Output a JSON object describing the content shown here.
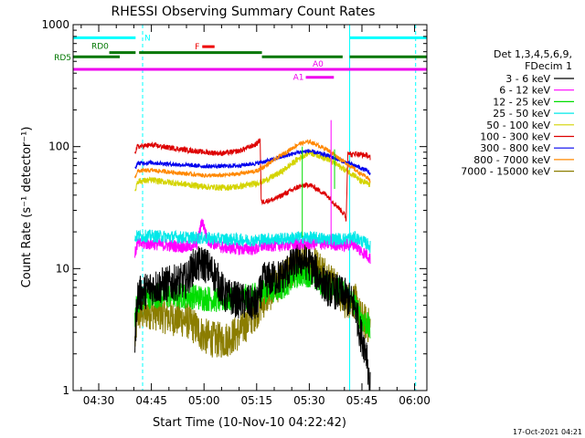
{
  "chart_data": {
    "type": "line",
    "title": "RHESSI Observing Summary Count Rates",
    "xlabel": "Start Time (10-Nov-10 04:22:42)",
    "ylabel": "Count Rate (s⁻¹ detector⁻¹)",
    "yscale": "log",
    "ylim": [
      1,
      1000
    ],
    "xlim_minutes": [
      22.7,
      123.5
    ],
    "x_ticks": [
      {
        "m": 30,
        "label": "04:30"
      },
      {
        "m": 45,
        "label": "04:45"
      },
      {
        "m": 60,
        "label": "05:00"
      },
      {
        "m": 75,
        "label": "05:15"
      },
      {
        "m": 90,
        "label": "05:30"
      },
      {
        "m": 105,
        "label": "05:45"
      },
      {
        "m": 120,
        "label": "06:00"
      }
    ],
    "y_ticks": [
      {
        "v": 1,
        "label": "1"
      },
      {
        "v": 10,
        "label": "10"
      },
      {
        "v": 100,
        "label": "100"
      },
      {
        "v": 1000,
        "label": "1000"
      }
    ],
    "legend": {
      "header": [
        "Det 1,3,4,5,6,9,",
        "FDecim 1"
      ],
      "entries": [
        {
          "label": "3 - 6 keV",
          "color": "#000000"
        },
        {
          "label": "6 - 12 keV",
          "color": "#ff00ff"
        },
        {
          "label": "12 - 25 keV",
          "color": "#00dd00"
        },
        {
          "label": "25 - 50 keV",
          "color": "#00e8e8"
        },
        {
          "label": "50 - 100 keV",
          "color": "#d4d400"
        },
        {
          "label": "100 - 300 keV",
          "color": "#dd0000"
        },
        {
          "label": "300 - 800 keV",
          "color": "#0000ee"
        },
        {
          "label": "800 - 7000 keV",
          "color": "#ff8800"
        },
        {
          "label": "7000 - 15000 keV",
          "color": "#8b7d00"
        }
      ]
    },
    "flag_bars": [
      {
        "label": "N",
        "color": "#00ffff",
        "segments": [
          [
            22.7,
            40.5
          ],
          [
            101.5,
            123.5
          ]
        ],
        "value": 780
      },
      {
        "label": "F",
        "color": "#ee0000",
        "segments": [
          [
            59.5,
            63
          ]
        ],
        "value": 660
      },
      {
        "label": "RD0",
        "color": "#007700",
        "segments": [
          [
            33,
            40.5
          ],
          [
            41.5,
            76.5
          ]
        ],
        "value": 590
      },
      {
        "label": "RD5",
        "color": "#007700",
        "segments": [
          [
            22.7,
            36
          ],
          [
            76.5,
            99.5
          ],
          [
            101.5,
            123.5
          ]
        ],
        "value": 545
      },
      {
        "label": "A0",
        "color": "#ee00ee",
        "segments": [
          [
            22.7,
            123.5
          ]
        ],
        "value": 430
      },
      {
        "label": "A1",
        "color": "#ee00ee",
        "segments": [
          [
            89,
            97
          ]
        ],
        "value": 370
      }
    ],
    "vertical_markers": [
      {
        "m": 42.5,
        "style": "dashed",
        "color": "#00ffff"
      },
      {
        "m": 101.5,
        "style": "solid",
        "color": "#00ffff"
      },
      {
        "m": 120.3,
        "style": "dashed",
        "color": "#00ffff"
      }
    ],
    "series": [
      {
        "name": "3 - 6 keV",
        "color": "#000000",
        "x": [
          40.3,
          41,
          45,
          55,
          57,
          60,
          63,
          66,
          70,
          75,
          77,
          82,
          87,
          90,
          95,
          100,
          103,
          104.5,
          106.5,
          107,
          107.4
        ],
        "y": [
          2.5,
          6,
          7,
          8,
          10.5,
          11,
          9,
          6,
          5.5,
          5,
          8,
          8.5,
          12,
          11,
          7,
          6,
          5,
          3,
          2,
          1.2,
          1
        ]
      },
      {
        "name": "6 - 12 keV",
        "color": "#ff00ff",
        "x": [
          40.3,
          41,
          45,
          55,
          58,
          59.5,
          61,
          65,
          70,
          75,
          77,
          82,
          87,
          90,
          95,
          100,
          103,
          104.5,
          106.5,
          107.4
        ],
        "y": [
          13,
          16,
          16,
          15,
          16,
          25,
          17,
          15,
          14.5,
          14.5,
          15.5,
          15.5,
          16,
          16,
          16,
          15.5,
          16,
          14,
          13,
          12
        ]
      },
      {
        "name": "12 - 25 keV",
        "color": "#00dd00",
        "x": [
          40.3,
          41,
          45,
          55,
          65,
          75,
          77,
          82,
          87,
          90,
          95,
          100,
          103,
          104.5,
          106.5,
          107.4
        ],
        "y": [
          4,
          5.5,
          6,
          6,
          5.5,
          6,
          6.5,
          7,
          9,
          9,
          7,
          6.5,
          5,
          4,
          3.5,
          3
        ]
      },
      {
        "name": "25 - 50 keV",
        "color": "#00e8e8",
        "x": [
          40.3,
          41,
          45,
          55,
          65,
          75,
          77,
          82,
          87,
          90,
          95,
          100,
          103,
          104.5,
          106.5,
          107.4
        ],
        "y": [
          18,
          18.5,
          18.5,
          18,
          17.5,
          17,
          17.5,
          17.5,
          18,
          18,
          17.5,
          17.5,
          18,
          17,
          16,
          15
        ]
      },
      {
        "name": "50 - 100 keV",
        "color": "#d4d400",
        "x": [
          40.3,
          41,
          45,
          50,
          60,
          65,
          70,
          75,
          77,
          82,
          87,
          90,
          95,
          100,
          103,
          104.5,
          106.5,
          107.4
        ],
        "y": [
          42,
          52,
          53,
          51,
          47,
          46,
          47,
          50,
          52,
          62,
          80,
          90,
          80,
          65,
          58,
          52,
          50,
          48
        ]
      },
      {
        "name": "100 - 300 keV",
        "color": "#dd0000",
        "x": [
          40.3,
          41,
          45,
          50,
          60,
          65,
          70,
          75,
          76,
          76.3,
          80,
          87,
          90,
          95,
          100,
          100.5,
          101,
          102,
          103,
          104.5,
          106.5,
          107.4
        ],
        "y": [
          90,
          100,
          103,
          98,
          90,
          88,
          92,
          105,
          115,
          35,
          37,
          47,
          49,
          40,
          28,
          25,
          92,
          85,
          88,
          86,
          85,
          80
        ]
      },
      {
        "name": "300 - 800 keV",
        "color": "#0000ee",
        "x": [
          40.3,
          41,
          45,
          50,
          60,
          65,
          70,
          75,
          77,
          82,
          87,
          90,
          95,
          100,
          103,
          104.5,
          106.5,
          107.4
        ],
        "y": [
          65,
          73,
          74,
          72,
          69,
          69,
          70,
          73,
          75,
          82,
          90,
          92,
          85,
          75,
          70,
          67,
          63,
          60
        ]
      },
      {
        "name": "800 - 7000 keV",
        "color": "#ff8800",
        "x": [
          40.3,
          41,
          45,
          50,
          60,
          65,
          70,
          75,
          77,
          82,
          87,
          90,
          95,
          100,
          103,
          104.5,
          106.5,
          107.4
        ],
        "y": [
          55,
          63,
          64,
          62,
          58,
          58,
          60,
          63,
          68,
          85,
          105,
          110,
          95,
          75,
          65,
          60,
          56,
          52
        ]
      },
      {
        "name": "7000 - 15000 keV",
        "color": "#8b7d00",
        "x": [
          40.3,
          41,
          45,
          50,
          55,
          57,
          60,
          63,
          66,
          70,
          75,
          77,
          82,
          87,
          90,
          95,
          100,
          103,
          104.5,
          106.5,
          107.4
        ],
        "y": [
          2.5,
          4.2,
          4.5,
          4,
          3.8,
          3.4,
          2.8,
          2.6,
          2.6,
          3,
          4.5,
          5.5,
          8,
          11,
          12,
          9,
          5.5,
          5.5,
          4,
          3.5,
          3.3
        ]
      }
    ]
  },
  "footer": {
    "timestamp": "17-Oct-2021 04:21"
  }
}
